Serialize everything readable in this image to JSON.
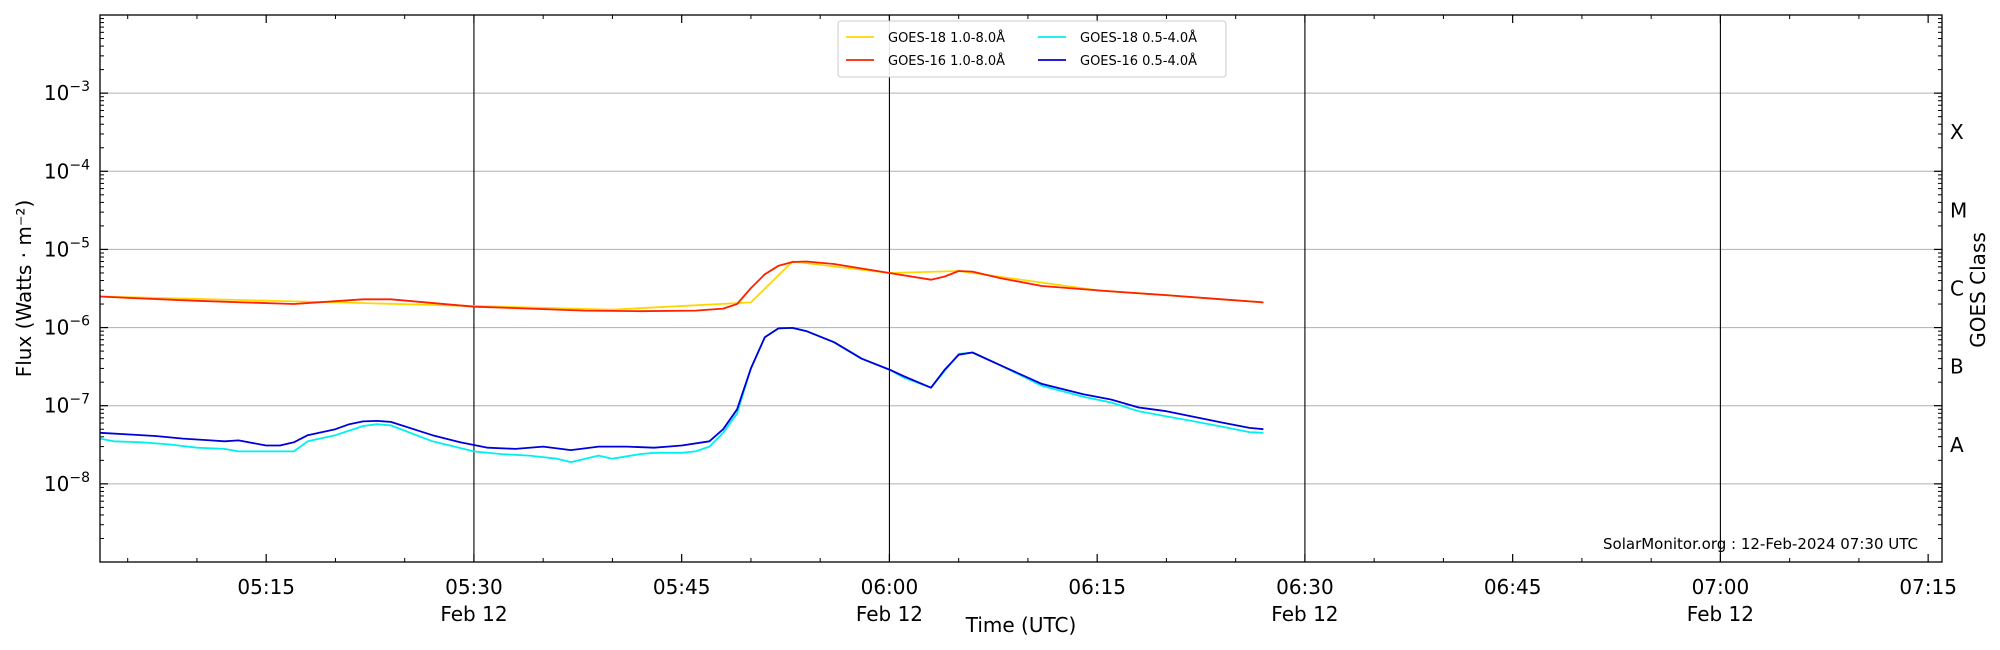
{
  "chart_data": {
    "type": "line",
    "xlabel": "Time (UTC)",
    "ylabel": "Flux (Watts · m⁻²)",
    "right_ylabel": "GOES Class",
    "y_scale": "log",
    "ylim": [
      1e-09,
      0.01
    ],
    "xlim": [
      "05:03",
      "07:16"
    ],
    "grid": "horizontal",
    "legend_position": "top-center",
    "credit": "SolarMonitor.org : 12-Feb-2024 07:30 UTC",
    "y_ticks": [
      {
        "value": 1e-08,
        "mantissa": "10",
        "exp": "−8"
      },
      {
        "value": 1e-07,
        "mantissa": "10",
        "exp": "−7"
      },
      {
        "value": 1e-06,
        "mantissa": "10",
        "exp": "−6"
      },
      {
        "value": 1e-05,
        "mantissa": "10",
        "exp": "−5"
      },
      {
        "value": 0.0001,
        "mantissa": "10",
        "exp": "−4"
      },
      {
        "value": 0.001,
        "mantissa": "10",
        "exp": "−3"
      }
    ],
    "x_ticks": [
      {
        "time": "05:15",
        "label": "05:15",
        "date": ""
      },
      {
        "time": "05:30",
        "label": "05:30",
        "date": "Feb 12"
      },
      {
        "time": "05:45",
        "label": "05:45",
        "date": ""
      },
      {
        "time": "06:00",
        "label": "06:00",
        "date": "Feb 12"
      },
      {
        "time": "06:15",
        "label": "06:15",
        "date": ""
      },
      {
        "time": "06:30",
        "label": "06:30",
        "date": "Feb 12"
      },
      {
        "time": "06:45",
        "label": "06:45",
        "date": ""
      },
      {
        "time": "07:00",
        "label": "07:00",
        "date": "Feb 12"
      },
      {
        "time": "07:15",
        "label": "07:15",
        "date": ""
      }
    ],
    "day_lines": [
      "05:30",
      "06:00",
      "06:30",
      "07:00"
    ],
    "goes_classes": [
      {
        "label": "A",
        "value": 3.16e-08
      },
      {
        "label": "B",
        "value": 3.16e-07
      },
      {
        "label": "C",
        "value": 3.16e-06
      },
      {
        "label": "M",
        "value": 3.16e-05
      },
      {
        "label": "X",
        "value": 0.000316
      }
    ],
    "series": [
      {
        "name": "GOES-18 1.0-8.0Å",
        "color": "#ffd700",
        "x": [
          "05:03",
          "05:20",
          "05:40",
          "05:50",
          "05:53",
          "06:00",
          "06:05",
          "06:15",
          "06:27"
        ],
        "y": [
          2.5e-06,
          2.1e-06,
          1.7e-06,
          2.1e-06,
          7e-06,
          5e-06,
          5.3e-06,
          3e-06,
          2.1e-06
        ]
      },
      {
        "name": "GOES-16 1.0-8.0Å",
        "color": "#ff2000",
        "x": [
          "05:03",
          "05:05",
          "05:10",
          "05:17",
          "05:22",
          "05:24",
          "05:30",
          "05:34",
          "05:38",
          "05:42",
          "05:46",
          "05:48",
          "05:49",
          "05:50",
          "05:51",
          "05:52",
          "05:53",
          "05:54",
          "05:56",
          "06:00",
          "06:03",
          "06:04",
          "06:05",
          "06:06",
          "06:08",
          "06:11",
          "06:16",
          "06:20",
          "06:24",
          "06:27"
        ],
        "y": [
          2.5e-06,
          2.4e-06,
          2.2e-06,
          2e-06,
          2.3e-06,
          2.3e-06,
          1.85e-06,
          1.75e-06,
          1.65e-06,
          1.62e-06,
          1.65e-06,
          1.75e-06,
          2e-06,
          3.2e-06,
          4.8e-06,
          6.2e-06,
          6.9e-06,
          7e-06,
          6.5e-06,
          5e-06,
          4.1e-06,
          4.5e-06,
          5.3e-06,
          5.2e-06,
          4.3e-06,
          3.4e-06,
          2.9e-06,
          2.6e-06,
          2.3e-06,
          2.1e-06
        ]
      },
      {
        "name": "GOES-18 0.5-4.0Å",
        "color": "#00f0f0",
        "x": [
          "05:03",
          "05:04",
          "05:06",
          "05:08",
          "05:10",
          "05:12",
          "05:13",
          "05:15",
          "05:17",
          "05:18",
          "05:20",
          "05:22",
          "05:23",
          "05:24",
          "05:27",
          "05:30",
          "05:32",
          "05:34",
          "05:36",
          "05:37",
          "05:39",
          "05:40",
          "05:42",
          "05:43",
          "05:45",
          "05:46",
          "05:47",
          "05:48",
          "05:49",
          "05:50",
          "05:51",
          "05:52",
          "05:53",
          "05:54",
          "05:56",
          "05:58",
          "06:00",
          "06:01",
          "06:03",
          "06:04",
          "06:05",
          "06:06",
          "06:08",
          "06:11",
          "06:14",
          "06:16",
          "06:18",
          "06:20",
          "06:22",
          "06:24",
          "06:26",
          "06:27"
        ],
        "y": [
          3.8e-08,
          3.5e-08,
          3.4e-08,
          3.2e-08,
          2.9e-08,
          2.8e-08,
          2.6e-08,
          2.6e-08,
          2.6e-08,
          3.5e-08,
          4.2e-08,
          5.5e-08,
          5.8e-08,
          5.6e-08,
          3.5e-08,
          2.6e-08,
          2.4e-08,
          2.3e-08,
          2.1e-08,
          1.9e-08,
          2.3e-08,
          2.1e-08,
          2.4e-08,
          2.5e-08,
          2.5e-08,
          2.6e-08,
          3e-08,
          4.5e-08,
          8e-08,
          3e-07,
          7.5e-07,
          9.8e-07,
          9.9e-07,
          9e-07,
          6.5e-07,
          4e-07,
          2.9e-07,
          2.3e-07,
          1.7e-07,
          2.8e-07,
          4.6e-07,
          4.8e-07,
          3.3e-07,
          1.8e-07,
          1.3e-07,
          1.1e-07,
          8.5e-08,
          7.3e-08,
          6.3e-08,
          5.4e-08,
          4.6e-08,
          4.5e-08
        ]
      },
      {
        "name": "GOES-16 0.5-4.0Å",
        "color": "#0000dd",
        "x": [
          "05:03",
          "05:05",
          "05:07",
          "05:09",
          "05:11",
          "05:12",
          "05:13",
          "05:15",
          "05:16",
          "05:17",
          "05:18",
          "05:20",
          "05:21",
          "05:22",
          "05:23",
          "05:24",
          "05:27",
          "05:29",
          "05:31",
          "05:33",
          "05:35",
          "05:37",
          "05:39",
          "05:41",
          "05:43",
          "05:44",
          "05:45",
          "05:47",
          "05:48",
          "05:49",
          "05:50",
          "05:51",
          "05:52",
          "05:53",
          "05:54",
          "05:56",
          "05:58",
          "06:00",
          "06:01",
          "06:03",
          "06:04",
          "06:05",
          "06:06",
          "06:08",
          "06:11",
          "06:14",
          "06:16",
          "06:18",
          "06:20",
          "06:22",
          "06:24",
          "06:26",
          "06:27"
        ],
        "y": [
          4.5e-08,
          4.3e-08,
          4.1e-08,
          3.8e-08,
          3.6e-08,
          3.5e-08,
          3.6e-08,
          3.1e-08,
          3.1e-08,
          3.4e-08,
          4.2e-08,
          5e-08,
          5.8e-08,
          6.3e-08,
          6.4e-08,
          6.2e-08,
          4.2e-08,
          3.4e-08,
          2.9e-08,
          2.8e-08,
          3e-08,
          2.7e-08,
          3e-08,
          3e-08,
          2.9e-08,
          3e-08,
          3.1e-08,
          3.5e-08,
          5e-08,
          9e-08,
          3e-07,
          7.5e-07,
          9.8e-07,
          9.9e-07,
          9e-07,
          6.5e-07,
          4e-07,
          2.9e-07,
          2.4e-07,
          1.7e-07,
          2.9e-07,
          4.5e-07,
          4.8e-07,
          3.3e-07,
          1.9e-07,
          1.4e-07,
          1.2e-07,
          9.5e-08,
          8.5e-08,
          7.2e-08,
          6.1e-08,
          5.2e-08,
          5e-08
        ]
      }
    ]
  }
}
